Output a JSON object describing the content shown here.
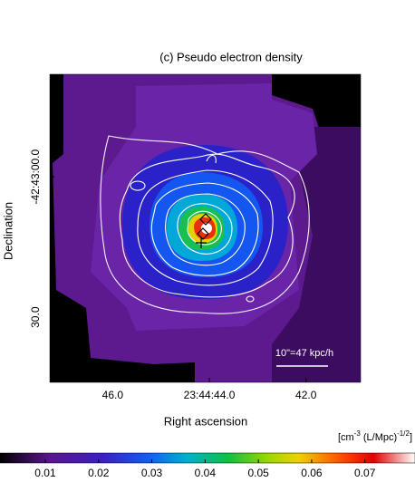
{
  "chart_data": {
    "type": "image",
    "title": "(c) Pseudo electron density",
    "xlabel": "Right ascension",
    "ylabel": "Declination",
    "xlim": [
      47.3,
      40.87
    ],
    "xticks": [
      {
        "value": 46.0,
        "label": "46.0"
      },
      {
        "value": 44.0,
        "label": "23:44:44.0"
      },
      {
        "value": 42.0,
        "label": "42.0"
      }
    ],
    "ylim": [
      -21.9,
      43.9
    ],
    "yticks": [
      {
        "value": 0,
        "label": "-42:43:00.0"
      },
      {
        "value": 30,
        "label": "30.0"
      }
    ],
    "scale_bar": "10\"=47 kpc/h",
    "colorbar_label": [
      "[cm",
      "-3",
      " (L/Mpc)",
      "-1/2",
      "]"
    ],
    "clim": [
      0.0015,
      0.0794
    ],
    "cticks": [
      0.01,
      0.02,
      0.03,
      0.04,
      0.05,
      0.06,
      0.07
    ]
  }
}
